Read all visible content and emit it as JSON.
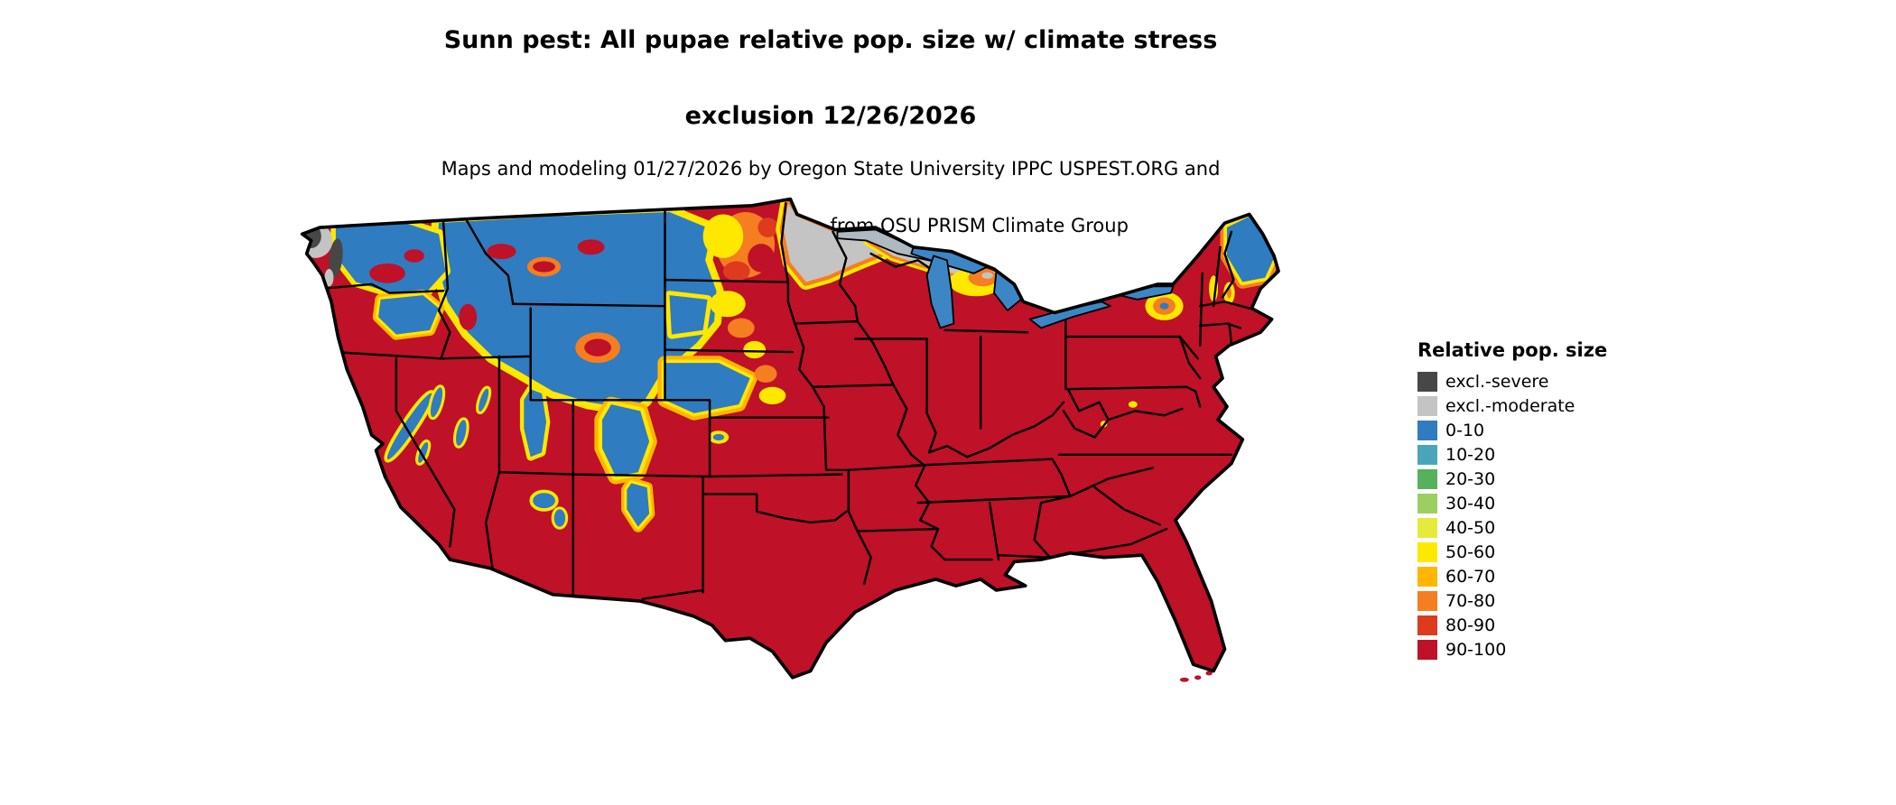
{
  "title": {
    "line1": "Sunn pest: All pupae relative pop. size w/ climate stress",
    "line2": "exclusion 12/26/2026"
  },
  "subtitle": {
    "line1": "Maps and modeling 01/27/2026 by Oregon State University IPPC USPEST.ORG and",
    "line2": "USDA-APHIS-PPQ; climate data from OSU PRISM Climate Group"
  },
  "legend": {
    "title": "Relative pop. size",
    "items": [
      {
        "label": "excl.-severe",
        "color": "#474747"
      },
      {
        "label": "excl.-moderate",
        "color": "#c4c4c4"
      },
      {
        "label": "0-10",
        "color": "#2f7cc0"
      },
      {
        "label": "10-20",
        "color": "#4aa5bb"
      },
      {
        "label": "20-30",
        "color": "#55b25a"
      },
      {
        "label": "30-40",
        "color": "#9ccf62"
      },
      {
        "label": "40-50",
        "color": "#e6ea3a"
      },
      {
        "label": "50-60",
        "color": "#ffe800"
      },
      {
        "label": "60-70",
        "color": "#ffb600"
      },
      {
        "label": "70-80",
        "color": "#f57e20"
      },
      {
        "label": "80-90",
        "color": "#de3b1e"
      },
      {
        "label": "90-100",
        "color": "#bf1128"
      }
    ]
  },
  "map": {
    "region": "Contiguous United States",
    "dominant_category": "90-100",
    "lake_color": "#3c86c5",
    "superior_color": "#aeb9c1",
    "border_color": "#000000",
    "background": "#ffffff"
  }
}
